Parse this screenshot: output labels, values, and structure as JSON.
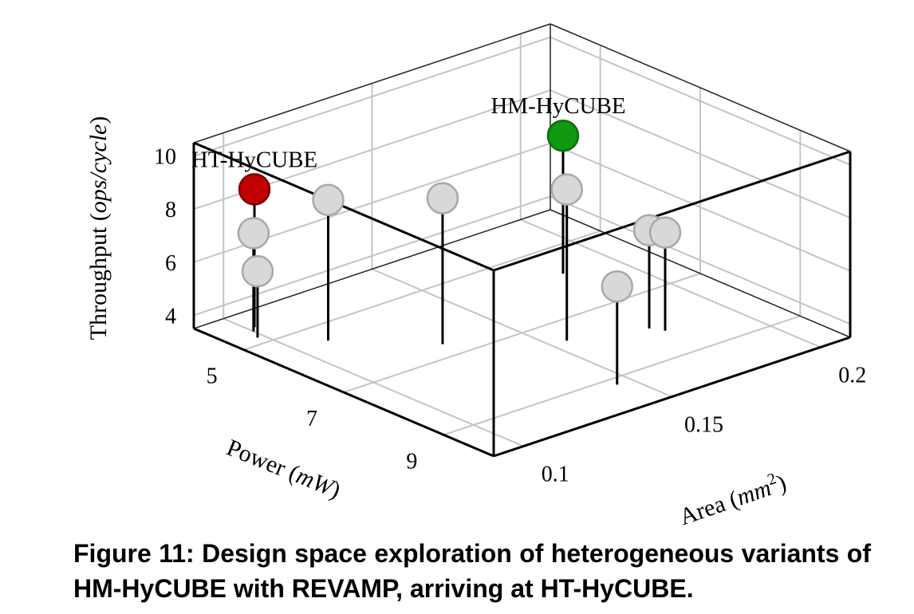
{
  "chart_data": {
    "type": "scatter",
    "projection": "3d",
    "grid": true,
    "xlabel": {
      "text": "Power (",
      "italic": "mW",
      "close": ")"
    },
    "ylabel": {
      "text": "Area (",
      "italic": "mm",
      "sup": "2",
      "close": ")"
    },
    "zlabel": {
      "text": "Throughput (",
      "italic": "ops/cycle",
      "close": ")"
    },
    "xlim": [
      4,
      10
    ],
    "ylim": [
      0.09,
      0.21
    ],
    "zlim": [
      3.5,
      10.5
    ],
    "xticks": [
      "5",
      "7",
      "9"
    ],
    "yticks": [
      "0.1",
      "0.15",
      "0.2"
    ],
    "zticks": [
      "4",
      "6",
      "8",
      "10"
    ],
    "points": [
      {
        "x": 4.8,
        "y": 0.098,
        "z": 6.0,
        "color": "#d8d8d8"
      },
      {
        "x": 4.6,
        "y": 0.1,
        "z": 7.2,
        "color": "#d8d8d8"
      },
      {
        "x": 4.5,
        "y": 0.102,
        "z": 8.7,
        "color": "#c00000",
        "label": "HT-HyCUBE"
      },
      {
        "x": 5.5,
        "y": 0.11,
        "z": 8.8,
        "color": "#d8d8d8"
      },
      {
        "x": 6.6,
        "y": 0.13,
        "z": 9.0,
        "color": "#d8d8d8"
      },
      {
        "x": 9.2,
        "y": 0.145,
        "z": 7.2,
        "color": "#d8d8d8"
      },
      {
        "x": 7.6,
        "y": 0.155,
        "z": 9.2,
        "color": "#d8d8d8"
      },
      {
        "x": 8.0,
        "y": 0.176,
        "z": 7.2,
        "color": "#d8d8d8"
      },
      {
        "x": 8.2,
        "y": 0.178,
        "z": 7.2,
        "color": "#d8d8d8"
      },
      {
        "x": 5.8,
        "y": 0.184,
        "z": 8.7,
        "color": "#119911",
        "label": "HM-HyCUBE"
      }
    ]
  },
  "caption": "Figure 11:  Design space exploration of heterogeneous variants of HM-HyCUBE with REVAMP, arriving at HT-HyCUBE."
}
